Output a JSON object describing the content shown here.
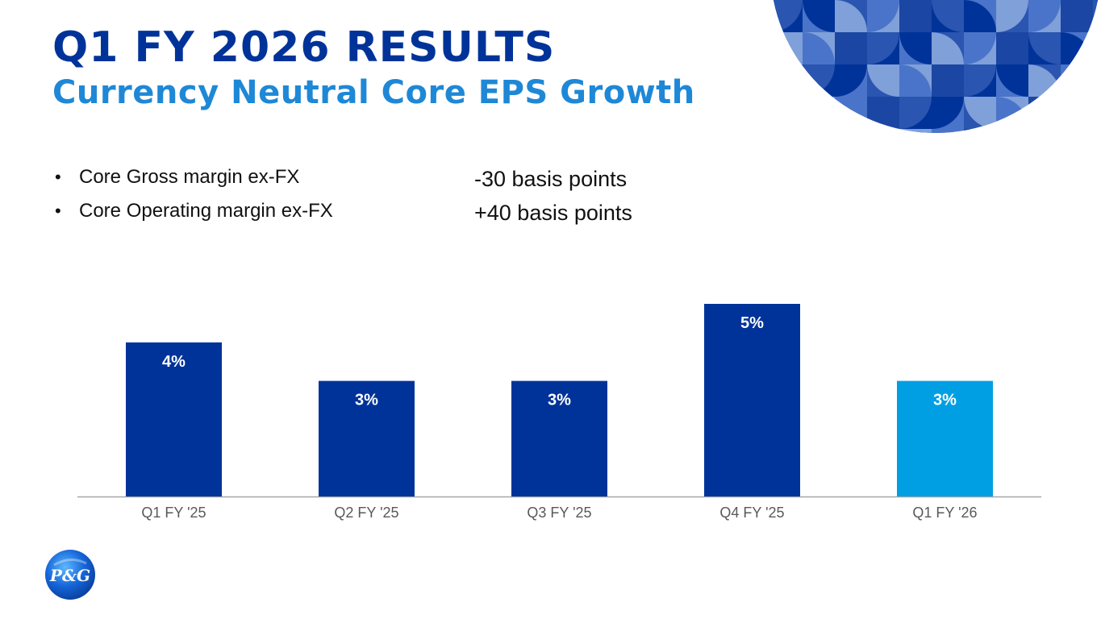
{
  "slide": {
    "title": "Q1 FY 2026 RESULTS",
    "subtitle": "Currency Neutral Core EPS Growth",
    "logo_text": "P&G"
  },
  "bullets": [
    {
      "label": "Core Gross margin ex-FX",
      "value": "-30 basis points"
    },
    {
      "label": "Core Operating margin ex-FX",
      "value": "+40 basis points"
    }
  ],
  "colors": {
    "title": "#003399",
    "subtitle": "#1e88d6",
    "bar_primary": "#003399",
    "bar_highlight": "#009fe3",
    "axis": "#a6a6a6",
    "tick_label": "#595959"
  },
  "chart_data": {
    "type": "bar",
    "title": "Currency Neutral Core EPS Growth",
    "categories": [
      "Q1 FY '25",
      "Q2 FY '25",
      "Q3 FY '25",
      "Q4 FY '25",
      "Q1 FY '26"
    ],
    "values": [
      4,
      3,
      3,
      5,
      3
    ],
    "data_labels": [
      "4%",
      "3%",
      "3%",
      "5%",
      "3%"
    ],
    "highlight_index": 4,
    "unit": "%",
    "ylim": [
      0,
      5
    ],
    "xlabel": "",
    "ylabel": "",
    "grid": false,
    "legend": "none"
  }
}
